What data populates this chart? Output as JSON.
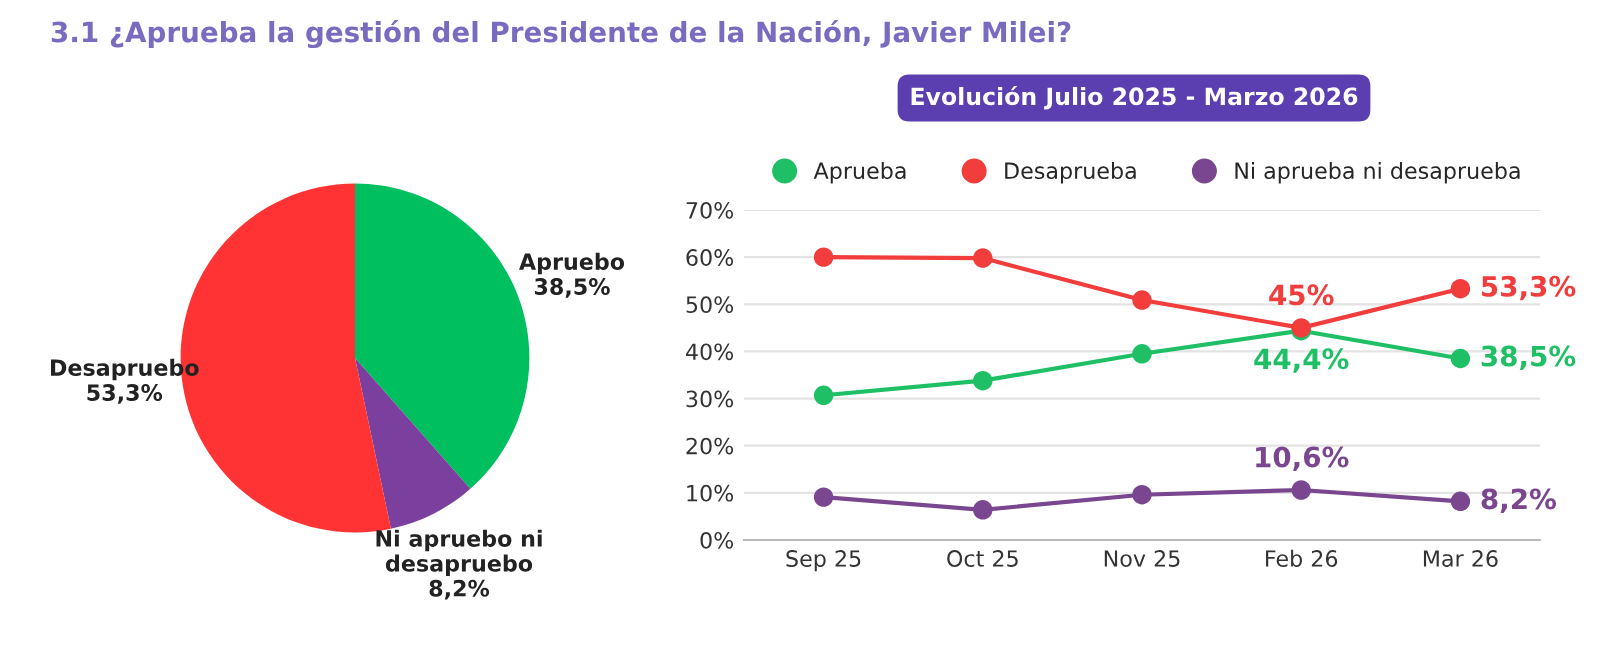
{
  "chart_data": [
    {
      "type": "pie",
      "title": "3.1 ¿Aprueba la gestión del Presidente de la Nación, Javier Milei?",
      "categories": [
        "Apruebo",
        "Ni apruebo ni\ndesapruebo",
        "Desapruebo"
      ],
      "values": [
        38.5,
        8.2,
        53.3
      ],
      "value_labels": [
        "38,5%",
        "8,2%",
        "53,3%"
      ],
      "colors": [
        "#00bf5f",
        "#7b3f9e",
        "#ff3333"
      ]
    },
    {
      "type": "line",
      "title": "Evolución Julio 2025 - Marzo 2026",
      "categories": [
        "Sep 25",
        "Oct 25",
        "Nov 25",
        "Feb 26",
        "Mar 26"
      ],
      "series": [
        {
          "name": "Aprueba",
          "color": "#1fbf66",
          "values": [
            30.7,
            33.8,
            39.5,
            44.4,
            38.5
          ],
          "value_labels": [
            null,
            null,
            null,
            "44,4%",
            "38,5%"
          ]
        },
        {
          "name": "Desaprueba",
          "color": "#f23d3d",
          "values": [
            60.0,
            59.8,
            50.9,
            45,
            53.3
          ],
          "value_labels": [
            null,
            null,
            null,
            "45%",
            "53,3%"
          ]
        },
        {
          "name": "Ni aprueba ni desaprueba",
          "color": "#7a4690",
          "values": [
            9.1,
            6.4,
            9.6,
            10.6,
            8.2
          ],
          "value_labels": [
            null,
            null,
            null,
            "10,6%",
            "8,2%"
          ]
        }
      ],
      "ylim": [
        0,
        70
      ],
      "yticks": [
        {
          "value": 0,
          "label": "0%"
        },
        {
          "value": 10,
          "label": "10%"
        },
        {
          "value": 20,
          "label": "20%"
        },
        {
          "value": 30,
          "label": "30%"
        },
        {
          "value": 40,
          "label": "40%"
        },
        {
          "value": 50,
          "label": "50%"
        },
        {
          "value": 60,
          "label": "60%"
        },
        {
          "value": 70,
          "label": "70%"
        }
      ],
      "grid": "y",
      "legend": "top",
      "marker": "circle",
      "line_style": "solid"
    }
  ]
}
